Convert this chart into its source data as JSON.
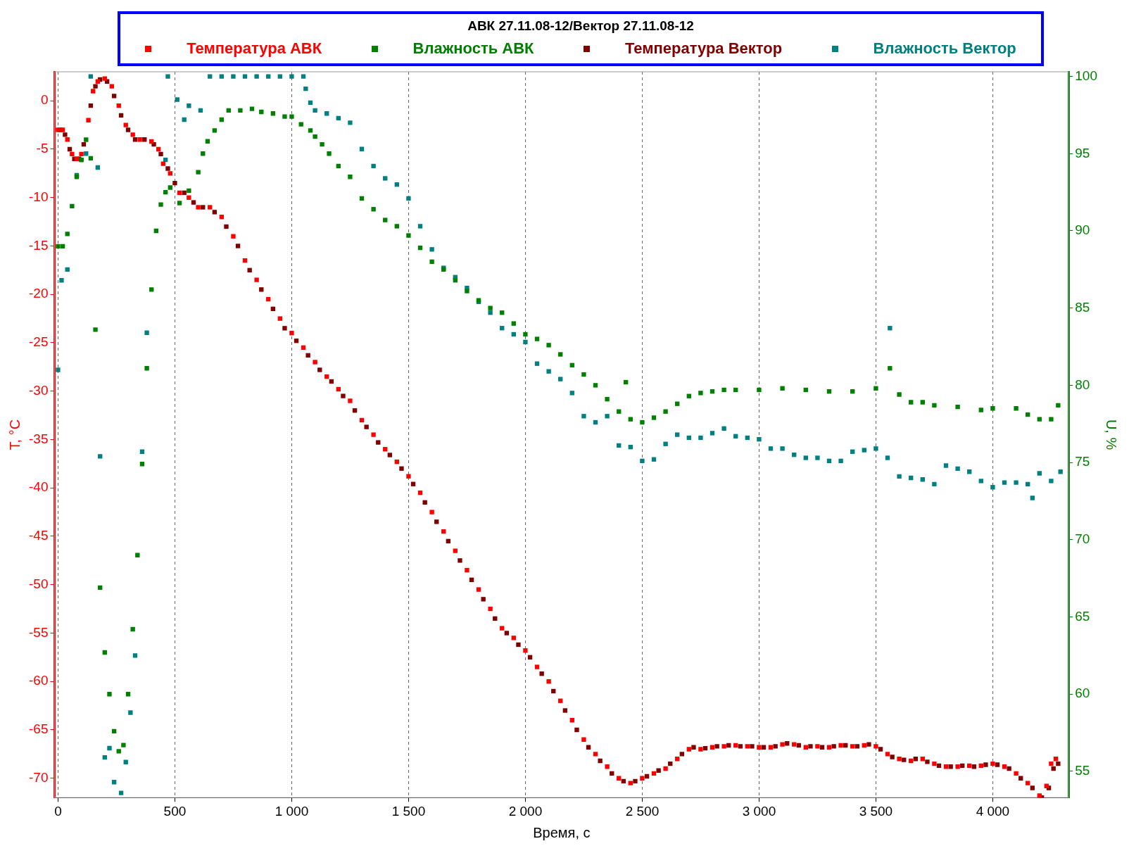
{
  "chart_data": {
    "type": "scatter",
    "legend_title": "АВК 27.11.08-12/Вектор 27.11.08-12",
    "xlabel": "Время, с",
    "ylabel": "T, °C",
    "y2label": "U, %",
    "xlim": [
      -15,
      4325
    ],
    "xticks": [
      0,
      500,
      {
        "value": 1000,
        "label": "1 000"
      },
      {
        "value": 1500,
        "label": "1 500"
      },
      {
        "value": 2000,
        "label": "2 000"
      },
      {
        "value": 2500,
        "label": "2 500"
      },
      {
        "value": 3000,
        "label": "3 000"
      },
      {
        "value": 3500,
        "label": "3 500"
      },
      {
        "value": 4000,
        "label": "4 000"
      }
    ],
    "ylim": [
      -72,
      3
    ],
    "yticks": [
      -70,
      -65,
      -60,
      -55,
      -50,
      -45,
      -40,
      -35,
      -30,
      -25,
      -20,
      -15,
      -10,
      -5,
      0
    ],
    "y2lim": [
      53.3,
      100.3
    ],
    "y2ticks": [
      55,
      60,
      65,
      70,
      75,
      80,
      85,
      90,
      95,
      100
    ],
    "grid": "x",
    "legend": "top",
    "marker": "square",
    "series": [
      {
        "name": "Температура АВК",
        "color": "#ff0000",
        "x": [
          0,
          20,
          40,
          60,
          80,
          100,
          130,
          150,
          170,
          200,
          230,
          260,
          290,
          320,
          350,
          400,
          430,
          450,
          480,
          520,
          560,
          600,
          650,
          700,
          750,
          800,
          850,
          900,
          950,
          1000,
          1050,
          1100,
          1150,
          1200,
          1250,
          1300,
          1350,
          1400,
          1450,
          1500,
          1550,
          1600,
          1650,
          1700,
          1750,
          1800,
          1850,
          1900,
          1950,
          2000,
          2050,
          2100,
          2150,
          2200,
          2250,
          2300,
          2350,
          2400,
          2450,
          2500,
          2550,
          2600,
          2650,
          2700,
          2750,
          2800,
          2850,
          2900,
          2950,
          3000,
          3050,
          3100,
          3150,
          3200,
          3250,
          3300,
          3350,
          3400,
          3450,
          3500,
          3550,
          3600,
          3650,
          3700,
          3750,
          3800,
          3850,
          3900,
          3950,
          4000,
          4050,
          4100,
          4150,
          4200,
          4230,
          4250,
          4270
        ],
        "values": [
          -3,
          -3,
          -4,
          -5.5,
          -6,
          -5.5,
          -2,
          1,
          2,
          2.3,
          1.5,
          -0.5,
          -2.5,
          -3.5,
          -4,
          -4.2,
          -5,
          -6.5,
          -7.5,
          -9.5,
          -10,
          -11,
          -11,
          -12,
          -14,
          -16.5,
          -18.5,
          -20.5,
          -22.5,
          -24,
          -25.5,
          -27,
          -28.5,
          -29.8,
          -31,
          -33,
          -34.5,
          -36,
          -37.3,
          -38.8,
          -40.5,
          -42.5,
          -44.5,
          -46.5,
          -48.5,
          -50.5,
          -52.5,
          -54.5,
          -55.5,
          -56.8,
          -58.5,
          -60,
          -62,
          -64,
          -66,
          -67.5,
          -68.8,
          -70,
          -70.5,
          -70,
          -69.5,
          -69,
          -68,
          -67,
          -67,
          -66.8,
          -66.7,
          -66.6,
          -66.7,
          -66.8,
          -66.8,
          -66.5,
          -66.5,
          -66.8,
          -66.7,
          -66.8,
          -66.6,
          -66.7,
          -66.6,
          -66.7,
          -67.5,
          -68,
          -68.2,
          -68,
          -68.5,
          -68.8,
          -68.8,
          -68.7,
          -68.7,
          -68.5,
          -68.8,
          -69.5,
          -70.5,
          -71.8,
          -70.8,
          -68.5,
          -68
        ]
      },
      {
        "name": "Влажность АВК",
        "color": "#008000",
        "axis": "y2",
        "x": [
          0,
          20,
          40,
          60,
          80,
          100,
          120,
          140,
          160,
          180,
          200,
          220,
          240,
          260,
          280,
          300,
          320,
          340,
          360,
          380,
          400,
          420,
          440,
          460,
          480,
          520,
          560,
          600,
          620,
          640,
          670,
          700,
          730,
          780,
          830,
          870,
          920,
          970,
          1000,
          1040,
          1080,
          1100,
          1130,
          1160,
          1200,
          1250,
          1300,
          1350,
          1400,
          1450,
          1500,
          1550,
          1600,
          1650,
          1700,
          1750,
          1800,
          1850,
          1900,
          1950,
          2000,
          2050,
          2100,
          2150,
          2200,
          2250,
          2300,
          2350,
          2400,
          2430,
          2450,
          2500,
          2550,
          2600,
          2650,
          2700,
          2750,
          2800,
          2850,
          2900,
          3000,
          3100,
          3200,
          3300,
          3400,
          3500,
          3560,
          3600,
          3650,
          3700,
          3750,
          3850,
          3950,
          4000,
          4100,
          4150,
          4200,
          4250,
          4280
        ],
        "values": [
          89,
          89,
          89.8,
          91.6,
          93.5,
          94.6,
          95.9,
          94.7,
          83.6,
          66.9,
          62.7,
          60,
          57.6,
          56.3,
          56.7,
          60,
          64.2,
          69,
          74.9,
          81.1,
          86.2,
          90,
          91.7,
          92.5,
          92.8,
          91.8,
          92.6,
          93.8,
          95,
          95.8,
          96.5,
          97.2,
          97.8,
          97.8,
          97.9,
          97.7,
          97.6,
          97.4,
          97.4,
          96.9,
          96.5,
          96.1,
          95.6,
          95,
          94.2,
          93.5,
          92.1,
          91.4,
          90.7,
          90.3,
          89.7,
          88.9,
          88,
          87.5,
          86.8,
          86.1,
          85.5,
          85,
          84.7,
          84,
          83.3,
          83,
          82.6,
          82,
          81.3,
          80.7,
          80,
          79.1,
          78.3,
          80.2,
          77.8,
          77.6,
          77.9,
          78.3,
          78.8,
          79.3,
          79.5,
          79.6,
          79.7,
          79.7,
          79.7,
          79.8,
          79.7,
          79.6,
          79.6,
          79.8,
          81.1,
          79.4,
          78.9,
          78.9,
          78.7,
          78.6,
          78.4,
          78.5,
          78.5,
          78.1,
          77.8,
          77.8,
          78.7
        ]
      },
      {
        "name": "Температура Вектор",
        "color": "#800000",
        "x": [
          10,
          30,
          50,
          70,
          90,
          110,
          140,
          160,
          180,
          210,
          240,
          270,
          300,
          330,
          370,
          410,
          440,
          470,
          500,
          540,
          580,
          620,
          670,
          720,
          770,
          820,
          870,
          920,
          970,
          1020,
          1070,
          1120,
          1170,
          1220,
          1270,
          1320,
          1370,
          1420,
          1470,
          1520,
          1570,
          1620,
          1670,
          1720,
          1770,
          1820,
          1870,
          1920,
          1970,
          2020,
          2070,
          2120,
          2170,
          2220,
          2270,
          2320,
          2370,
          2420,
          2470,
          2520,
          2570,
          2620,
          2670,
          2720,
          2770,
          2820,
          2870,
          2920,
          2970,
          3020,
          3070,
          3120,
          3170,
          3220,
          3270,
          3320,
          3370,
          3420,
          3470,
          3520,
          3570,
          3620,
          3670,
          3720,
          3770,
          3820,
          3870,
          3920,
          3970,
          4020,
          4070,
          4120,
          4170,
          4210,
          4240,
          4260,
          4280
        ],
        "values": [
          -3,
          -3.5,
          -5,
          -6,
          -6,
          -4.5,
          -0.5,
          1.5,
          2.2,
          2,
          0.5,
          -1.5,
          -3,
          -4,
          -4,
          -4.5,
          -5.5,
          -7,
          -8.5,
          -9.5,
          -10.5,
          -11,
          -11.5,
          -13,
          -15,
          -17.5,
          -19.5,
          -21.5,
          -23.5,
          -24.8,
          -26.3,
          -27.8,
          -29,
          -30.5,
          -32,
          -33.7,
          -35.3,
          -36.6,
          -38,
          -39.6,
          -41.5,
          -43.5,
          -45.5,
          -47.5,
          -49.5,
          -51.5,
          -53.5,
          -55,
          -56.2,
          -57.5,
          -59.2,
          -61,
          -63,
          -65,
          -66.8,
          -68.2,
          -69.5,
          -70.3,
          -70.3,
          -69.8,
          -69.2,
          -68.5,
          -67.5,
          -66.8,
          -66.9,
          -66.7,
          -66.6,
          -66.7,
          -66.7,
          -66.8,
          -66.7,
          -66.4,
          -66.6,
          -66.7,
          -66.8,
          -66.7,
          -66.6,
          -66.7,
          -66.5,
          -67,
          -67.8,
          -68.1,
          -68,
          -68.3,
          -68.7,
          -68.8,
          -68.7,
          -68.8,
          -68.6,
          -68.6,
          -69,
          -70,
          -71,
          -72,
          -71,
          -69,
          -68.5
        ]
      },
      {
        "name": "Влажность Вектор",
        "color": "#008080",
        "axis": "y2",
        "x": [
          0,
          15,
          40,
          80,
          100,
          120,
          140,
          170,
          180,
          200,
          220,
          240,
          270,
          290,
          310,
          330,
          360,
          380,
          460,
          470,
          510,
          540,
          560,
          610,
          650,
          700,
          750,
          800,
          850,
          900,
          950,
          1000,
          1050,
          1060,
          1080,
          1100,
          1150,
          1200,
          1250,
          1300,
          1350,
          1400,
          1450,
          1500,
          1550,
          1600,
          1650,
          1700,
          1750,
          1800,
          1850,
          1900,
          1950,
          2000,
          2050,
          2100,
          2150,
          2200,
          2250,
          2300,
          2350,
          2400,
          2450,
          2500,
          2550,
          2600,
          2650,
          2700,
          2750,
          2800,
          2850,
          2900,
          2950,
          3000,
          3050,
          3100,
          3150,
          3200,
          3250,
          3300,
          3350,
          3400,
          3450,
          3500,
          3550,
          3560,
          3600,
          3650,
          3700,
          3750,
          3800,
          3850,
          3900,
          3950,
          4000,
          4050,
          4100,
          4150,
          4170,
          4200,
          4250,
          4290
        ],
        "values": [
          81,
          86.8,
          87.5,
          93.6,
          94.6,
          95,
          100,
          94.1,
          75.4,
          55.9,
          56.5,
          54.3,
          53.6,
          55.6,
          58.8,
          62.5,
          75.7,
          83.4,
          94.6,
          100,
          98.5,
          97.2,
          98.1,
          97.8,
          100,
          100,
          100,
          100,
          100,
          100,
          100,
          100,
          100,
          99.2,
          98.3,
          97.8,
          97.6,
          97.3,
          97,
          95.3,
          94.2,
          93.4,
          93,
          92.1,
          90.3,
          88.8,
          87.6,
          87,
          86.3,
          85.4,
          84.7,
          83.7,
          83.3,
          82.8,
          81.4,
          80.9,
          80.4,
          79.5,
          78,
          77.6,
          78,
          76.1,
          76,
          75.1,
          75.2,
          76.2,
          76.8,
          76.6,
          76.6,
          76.9,
          77.2,
          76.7,
          76.6,
          76.5,
          75.9,
          75.9,
          75.5,
          75.3,
          75.3,
          75.1,
          75.1,
          75.7,
          75.8,
          75.9,
          75.3,
          83.7,
          74.1,
          74,
          73.9,
          73.6,
          74.8,
          74.6,
          74.4,
          73.8,
          73.4,
          73.7,
          73.7,
          73.6,
          72.7,
          74.3,
          73.8,
          74.4
        ]
      }
    ]
  }
}
